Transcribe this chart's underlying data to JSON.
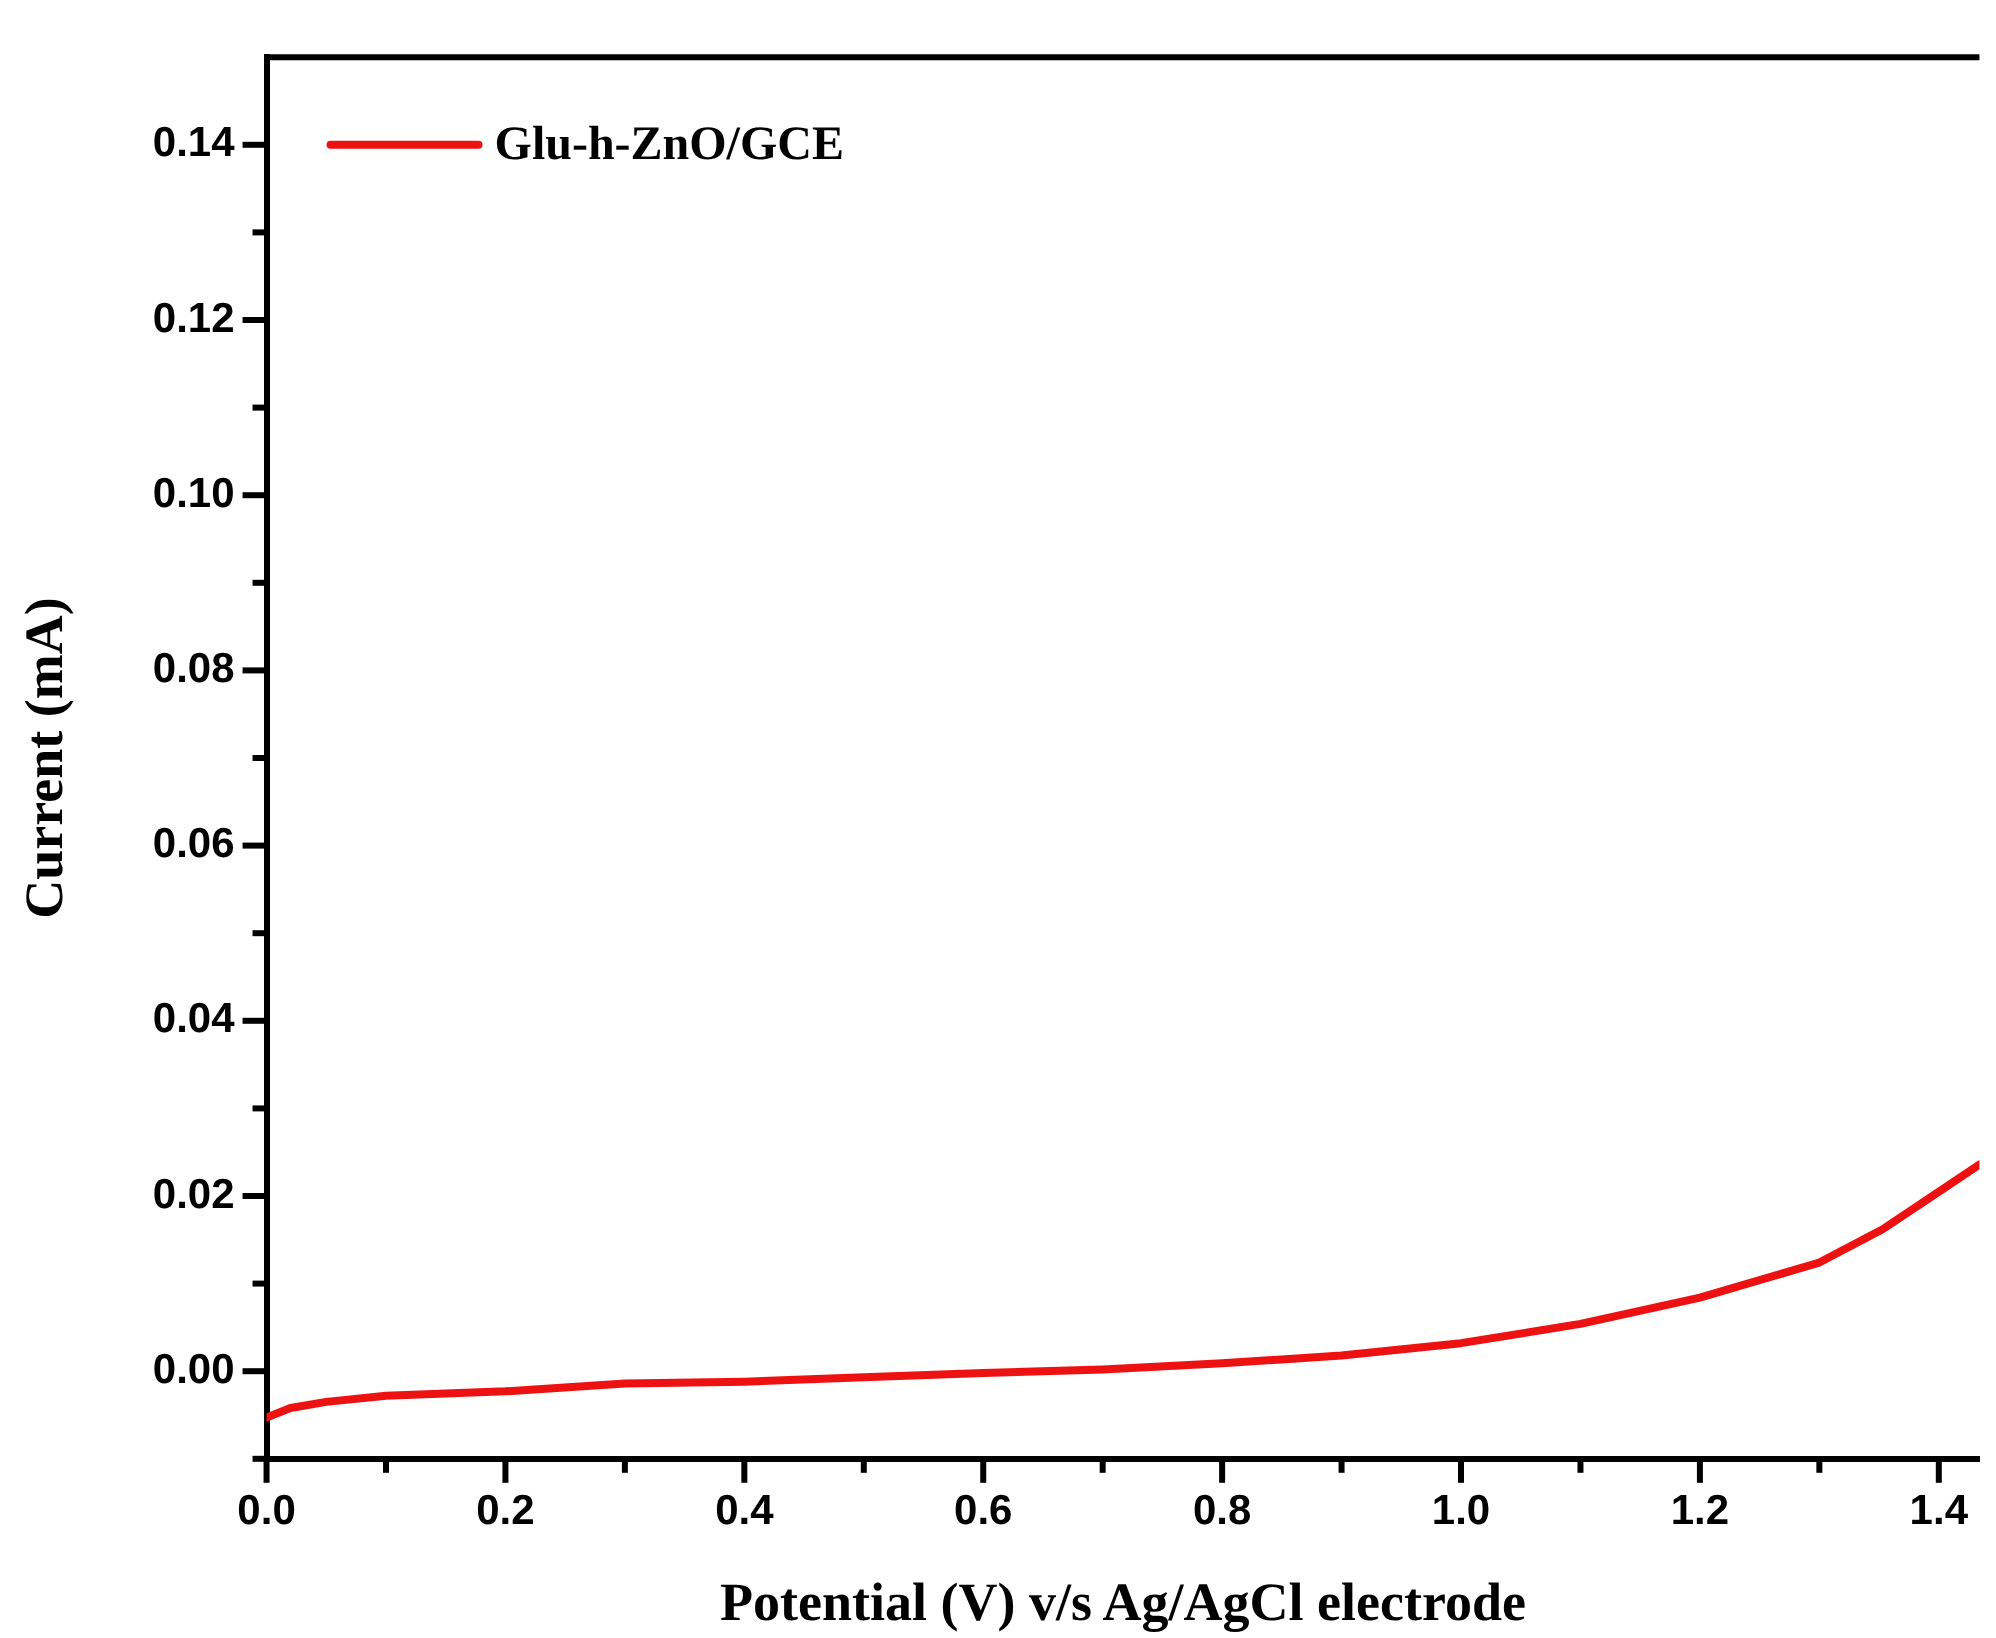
{
  "chart_data": {
    "type": "line",
    "xlabel": "Potential (V) v/s Ag/AgCl electrode",
    "ylabel": "Current (mA)",
    "xlim": [
      0,
      1.434
    ],
    "ylim": [
      -0.01,
      0.15
    ],
    "xticks": [
      {
        "value": 0,
        "label": "0.0"
      },
      {
        "value": 0.1,
        "label": null
      },
      {
        "value": 0.2,
        "label": "0.2"
      },
      {
        "value": 0.3,
        "label": null
      },
      {
        "value": 0.4,
        "label": "0.4"
      },
      {
        "value": 0.5,
        "label": null
      },
      {
        "value": 0.6,
        "label": "0.6"
      },
      {
        "value": 0.7,
        "label": null
      },
      {
        "value": 0.8,
        "label": "0.8"
      },
      {
        "value": 0.9,
        "label": null
      },
      {
        "value": 1.0,
        "label": "1.0"
      },
      {
        "value": 1.1,
        "label": null
      },
      {
        "value": 1.2,
        "label": "1.2"
      },
      {
        "value": 1.3,
        "label": null
      },
      {
        "value": 1.4,
        "label": "1.4"
      }
    ],
    "yticks": [
      {
        "value": -0.01,
        "label": null
      },
      {
        "value": 0,
        "label": "0.00"
      },
      {
        "value": 0.01,
        "label": null
      },
      {
        "value": 0.02,
        "label": "0.02"
      },
      {
        "value": 0.03,
        "label": null
      },
      {
        "value": 0.04,
        "label": "0.04"
      },
      {
        "value": 0.05,
        "label": null
      },
      {
        "value": 0.06,
        "label": "0.06"
      },
      {
        "value": 0.07,
        "label": null
      },
      {
        "value": 0.08,
        "label": "0.08"
      },
      {
        "value": 0.09,
        "label": null
      },
      {
        "value": 0.1,
        "label": "0.10"
      },
      {
        "value": 0.11,
        "label": null
      },
      {
        "value": 0.12,
        "label": "0.12"
      },
      {
        "value": 0.13,
        "label": null
      },
      {
        "value": 0.14,
        "label": "0.14"
      }
    ],
    "x": [
      0,
      0.02,
      0.05,
      0.1,
      0.2,
      0.3,
      0.4,
      0.5,
      0.6,
      0.7,
      0.8,
      0.9,
      1.0,
      1.1,
      1.2,
      1.3,
      1.353,
      1.398,
      1.434
    ],
    "series": [
      {
        "name": "Glu-h-ZnO/GCE",
        "color": "#ee1111",
        "values": [
          -0.0053,
          -0.0042,
          -0.0035,
          -0.0028,
          -0.0023,
          -0.0014,
          -0.0012,
          -0.0007,
          -0.0002,
          0.0002,
          0.0009,
          0.0018,
          0.0032,
          0.0054,
          0.0084,
          0.0124,
          0.0162,
          0.0203,
          0.0236
        ]
      }
    ],
    "grid": false,
    "legend": "top left",
    "marker": "none",
    "line_style": "solid"
  }
}
